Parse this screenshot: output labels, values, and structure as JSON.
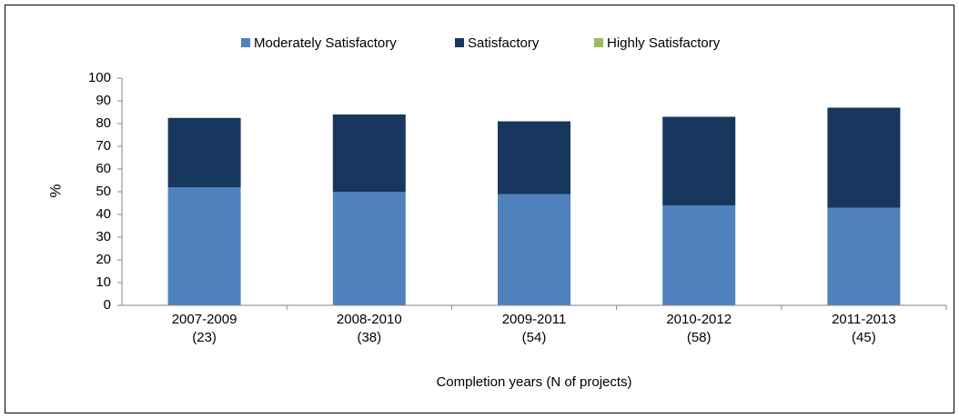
{
  "chart_data": {
    "type": "stacked_bar",
    "x_label": "Completion years (N of projects)",
    "y_label": "%",
    "categories": [
      [
        "2007-2009",
        "(23)"
      ],
      [
        "2008-2010",
        "(38)"
      ],
      [
        "2009-2011",
        "(54)"
      ],
      [
        "2010-2012",
        "(58)"
      ],
      [
        "2011-2013",
        "(45)"
      ]
    ],
    "series": [
      {
        "name": "Moderately Satisfactory",
        "color": "#4f81bd",
        "values": [
          52,
          50,
          49,
          44,
          43
        ]
      },
      {
        "name": "Satisfactory",
        "color": "#17375e",
        "values": [
          30.5,
          34,
          32,
          39,
          44
        ]
      },
      {
        "name": "Highly Satisfactory",
        "color": "#9bbb59",
        "values": [
          0,
          0,
          0,
          0,
          0
        ]
      }
    ],
    "ylim": [
      0,
      100
    ],
    "yticks": [
      0,
      10,
      20,
      30,
      40,
      50,
      60,
      70,
      80,
      90,
      100
    ],
    "legend": "top"
  }
}
